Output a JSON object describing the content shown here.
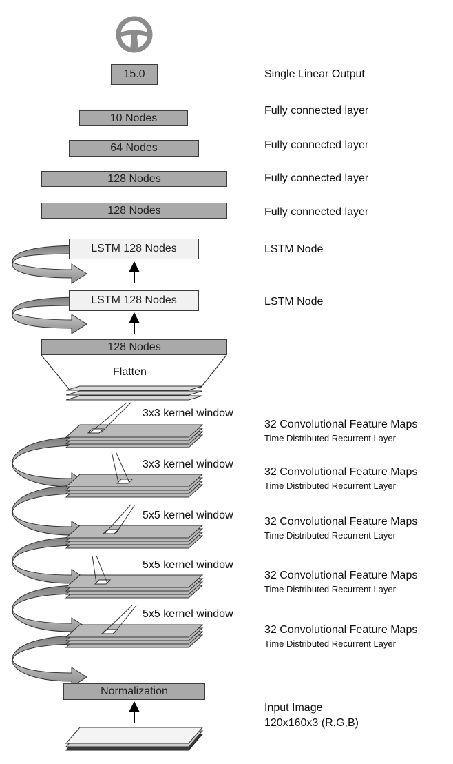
{
  "output": {
    "value": "15.0",
    "label": "Single Linear Output",
    "icon": "steering-wheel-icon"
  },
  "dense_layers": [
    {
      "label": "10 Nodes",
      "desc": "Fully connected layer"
    },
    {
      "label": "64 Nodes",
      "desc": "Fully connected layer"
    },
    {
      "label": "128 Nodes",
      "desc": "Fully connected layer"
    },
    {
      "label": "128 Nodes",
      "desc": "Fully connected layer"
    }
  ],
  "lstm_layers": [
    {
      "label": "LSTM 128 Nodes",
      "desc": "LSTM Node"
    },
    {
      "label": "LSTM 128 Nodes",
      "desc": "LSTM Node"
    }
  ],
  "flatten": {
    "box_label": "128 Nodes",
    "label": "Flatten"
  },
  "conv_layers": [
    {
      "kernel": "3x3 kernel window",
      "title": "32 Convolutional Feature Maps",
      "subtitle": "Time Distributed Recurrent Layer"
    },
    {
      "kernel": "3x3 kernel window",
      "title": "32 Convolutional Feature Maps",
      "subtitle": "Time Distributed Recurrent Layer"
    },
    {
      "kernel": "5x5 kernel window",
      "title": "32 Convolutional Feature Maps",
      "subtitle": "Time Distributed Recurrent Layer"
    },
    {
      "kernel": "5x5 kernel window",
      "title": "32 Convolutional Feature Maps",
      "subtitle": "Time Distributed Recurrent Layer"
    },
    {
      "kernel": "5x5 kernel window",
      "title": "32 Convolutional Feature Maps",
      "subtitle": "Time Distributed Recurrent Layer"
    }
  ],
  "normalization": {
    "label": "Normalization"
  },
  "input": {
    "title": "Input Image",
    "dims": "120x160x3 (R,G,B)"
  },
  "colors": {
    "box_dark": "#a9a9a9",
    "box_light": "#f1f1f1",
    "stack": "#b9b9b9",
    "loop_arrow": "#9a9a9a",
    "outline": "#3c3c3c"
  }
}
